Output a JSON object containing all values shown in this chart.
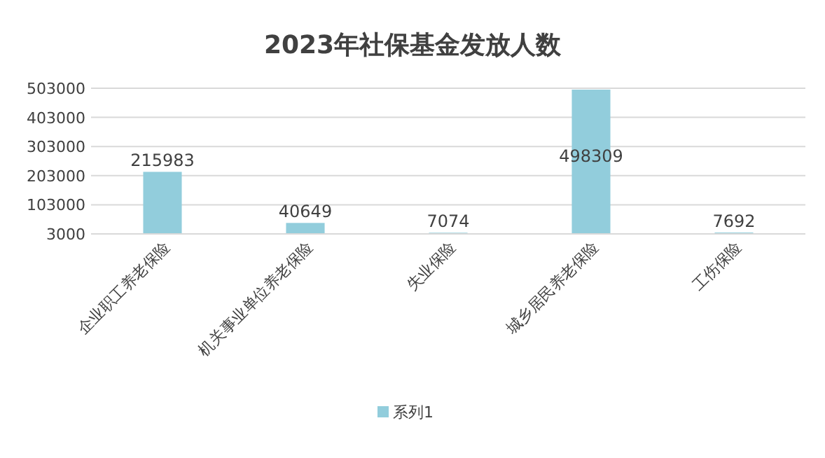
{
  "chart_data": {
    "type": "bar",
    "title": "2023年社保基金发放人数",
    "categories": [
      "企业职工养老保险",
      "机关事业单位养老保险",
      "失业保险",
      "城乡居民养老保险",
      "工伤保险"
    ],
    "series": [
      {
        "name": "系列1",
        "color": "#92cddc",
        "values": [
          215983,
          40649,
          7074,
          498309,
          7692
        ]
      }
    ],
    "ylim": [
      3000,
      503000
    ],
    "yticks": [
      3000,
      103000,
      203000,
      303000,
      403000,
      503000
    ],
    "grid": "y",
    "data_labels": true,
    "legend": "bottom"
  }
}
